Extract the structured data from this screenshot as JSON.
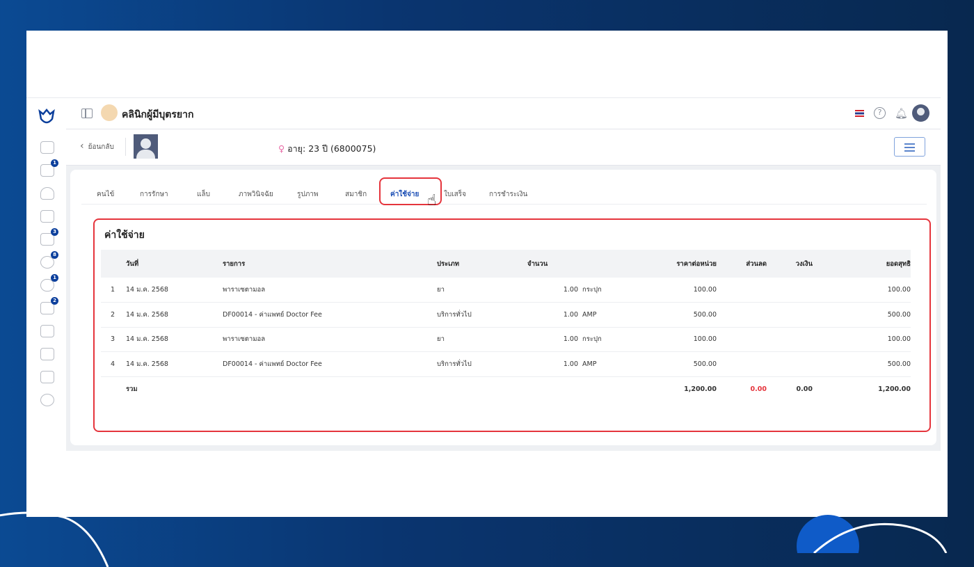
{
  "header": {
    "clinic_name": "คลินิกผู้มีบุตรยาก"
  },
  "sidebar": {
    "badges": [
      "1",
      "3",
      "8",
      "1",
      "2"
    ]
  },
  "patient": {
    "back_label": "ย้อนกลับ",
    "gender_icon": "♀",
    "age_info": "อายุ: 23 ปี (6800075)"
  },
  "tabs": [
    "คนไข้",
    "การรักษา",
    "แล็บ",
    "ภาพวินิจฉัย",
    "รูปภาพ",
    "สมาชิก",
    "ค่าใช้จ่าย",
    "ใบเสร็จ",
    "การชำระเงิน"
  ],
  "active_tab": "ค่าใช้จ่าย",
  "section": {
    "title": "ค่าใช้จ่าย"
  },
  "table": {
    "headers": {
      "date": "วันที่",
      "item": "รายการ",
      "type": "ประเภท",
      "qty": "จำนวน",
      "unit_price": "ราคาต่อหน่วย",
      "discount": "ส่วนลด",
      "limit": "วงเงิน",
      "net": "ยอดสุทธิ"
    },
    "rows": [
      {
        "no": "1",
        "date": "14 ม.ค. 2568",
        "item": "พาราเซตามอล",
        "type": "ยา",
        "qty": "1.00",
        "unit": "กระปุก",
        "unit_price": "100.00",
        "net": "100.00"
      },
      {
        "no": "2",
        "date": "14 ม.ค. 2568",
        "item": "DF00014 - ค่าแพทย์ Doctor Fee",
        "type": "บริการทั่วไป",
        "qty": "1.00",
        "unit": "AMP",
        "unit_price": "500.00",
        "net": "500.00"
      },
      {
        "no": "3",
        "date": "14 ม.ค. 2568",
        "item": "พาราเซตามอล",
        "type": "ยา",
        "qty": "1.00",
        "unit": "กระปุก",
        "unit_price": "100.00",
        "net": "100.00"
      },
      {
        "no": "4",
        "date": "14 ม.ค. 2568",
        "item": "DF00014 - ค่าแพทย์ Doctor Fee",
        "type": "บริการทั่วไป",
        "qty": "1.00",
        "unit": "AMP",
        "unit_price": "500.00",
        "net": "500.00"
      }
    ],
    "total": {
      "label": "รวม",
      "unit_price": "1,200.00",
      "discount": "0.00",
      "limit": "0.00",
      "net": "1,200.00"
    }
  },
  "colors": {
    "accent": "#1c4fb5",
    "highlight": "#e5343c",
    "discount": "#e5343c"
  }
}
